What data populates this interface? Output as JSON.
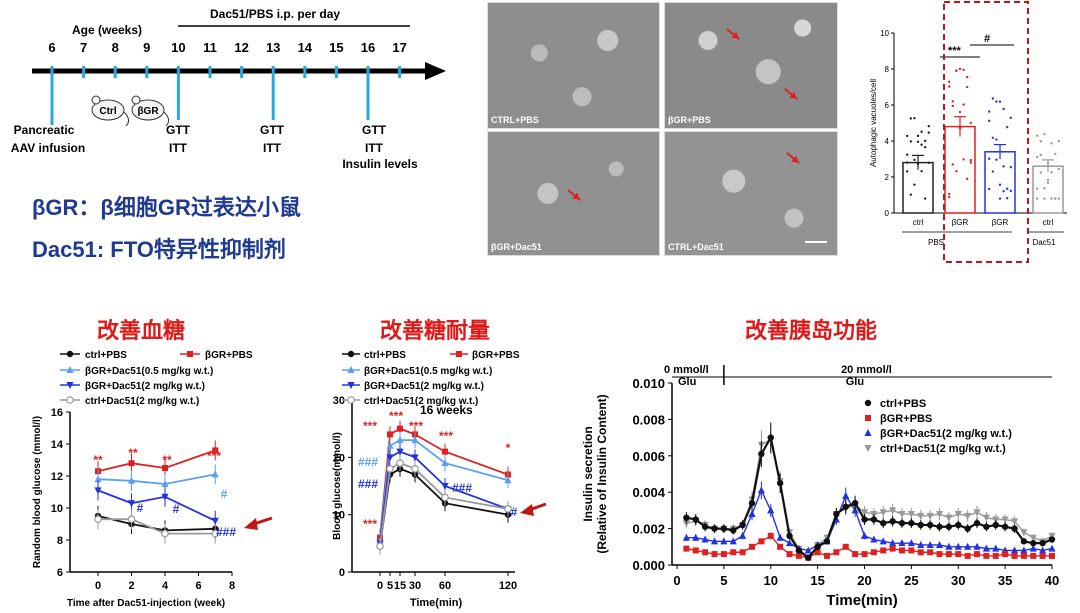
{
  "timeline": {
    "header_age": "Age (weeks)",
    "header_treat": "Dac51/PBS  i.p. per day",
    "weeks": [
      "6",
      "7",
      "8",
      "9",
      "10",
      "11",
      "12",
      "13",
      "14",
      "15",
      "16",
      "17"
    ],
    "mouse_ctrl": "Ctrl",
    "mouse_bgr": "βGR",
    "event_pancreatic": "Pancreatic",
    "event_aav": "AAV infusion",
    "gtt": "GTT",
    "itt": "ITT",
    "insulin_levels": "Insulin levels"
  },
  "notes": {
    "line1": "βGR：β细胞GR过表达小鼠",
    "line2": "Dac51: FTO特异性抑制剂"
  },
  "em_images": {
    "p1": "CTRL+PBS",
    "p2": "βGR+PBS",
    "p3": "βGR+Dac51",
    "p4": "CTRL+Dac51"
  },
  "section_titles": {
    "glucose": "改善血糖",
    "tolerance": "改善糖耐量",
    "islet": "改善胰岛功能"
  },
  "chart_data": [
    {
      "type": "bar",
      "ylabel": "Autophagic vacuoles/cell",
      "ylim": [
        0,
        10
      ],
      "yticks": [
        "0",
        "2",
        "4",
        "6",
        "8",
        "10"
      ],
      "categories": [
        "ctrl",
        "βGR",
        "βGR",
        "ctrl"
      ],
      "groups": [
        "PBS",
        "Dac51"
      ],
      "values": [
        2.8,
        4.8,
        3.4,
        2.6
      ],
      "errors": [
        0.4,
        0.55,
        0.4,
        0.35
      ],
      "colors": [
        "#222222",
        "#e02020",
        "#2233dd",
        "#999999"
      ],
      "annotations": [
        "***",
        "#"
      ]
    },
    {
      "type": "line",
      "xlabel": "Time after Dac51-injection (week)",
      "ylabel": "Random blood glucose (mmol/l)",
      "xticks": [
        "0",
        "2",
        "4",
        "6",
        "8"
      ],
      "yticks": [
        "6",
        "8",
        "10",
        "12",
        "14",
        "16"
      ],
      "x": [
        0,
        2,
        4,
        7
      ],
      "series": [
        {
          "name": "ctrl+PBS",
          "values": [
            9.5,
            9.0,
            8.6,
            8.7
          ],
          "color": "#111111"
        },
        {
          "name": "βGR+PBS",
          "values": [
            12.3,
            12.8,
            12.5,
            13.6
          ],
          "color": "#e02020"
        },
        {
          "name": "βGR+Dac51(0.5 mg/kg w.t.)",
          "values": [
            11.8,
            11.7,
            11.5,
            12.1
          ],
          "color": "#5aa0f0"
        },
        {
          "name": "βGR+Dac51(2 mg/kg w.t.)",
          "values": [
            11.1,
            10.3,
            10.7,
            9.2
          ],
          "color": "#2233dd"
        },
        {
          "name": "ctrl+Dac51(2 mg/kg w.t.)",
          "values": [
            9.3,
            9.3,
            8.4,
            8.4
          ],
          "color": "#999999"
        }
      ],
      "annotations": [
        "**",
        "**",
        "**",
        "***",
        "#",
        "#",
        "#",
        "###"
      ]
    },
    {
      "type": "line",
      "title": "16 weeks",
      "xlabel": "Time(min)",
      "ylabel": "Blood glucose(mmol/l)",
      "xticks": [
        "0",
        "5",
        "15",
        "30",
        "60",
        "120"
      ],
      "yticks": [
        "0",
        "10",
        "20",
        "30"
      ],
      "series": [
        {
          "name": "ctrl+PBS",
          "values": [
            4.5,
            17,
            18,
            17,
            12,
            10
          ],
          "color": "#111111"
        },
        {
          "name": "βGR+PBS",
          "values": [
            6,
            24,
            25,
            24,
            21,
            17
          ],
          "color": "#e02020"
        },
        {
          "name": "βGR+Dac51(0.5 mg/kg w.t.)",
          "values": [
            5.5,
            22,
            23,
            23,
            19,
            16
          ],
          "color": "#5aa0f0"
        },
        {
          "name": "βGR+Dac51(2 mg/kg w.t.)",
          "values": [
            5,
            20,
            21,
            20,
            15,
            11
          ],
          "color": "#2233dd"
        },
        {
          "name": "ctrl+Dac51(2 mg/kg w.t.)",
          "values": [
            4.5,
            18,
            19,
            18,
            13,
            11
          ],
          "color": "#999999"
        }
      ],
      "annotations": [
        "***",
        "***",
        "***",
        "***",
        "***",
        "*",
        "###",
        "###",
        "###",
        "#"
      ]
    },
    {
      "type": "line",
      "xlabel": "Time(min)",
      "ylabel": "Insulin secretion (Relative of Insulin Content)",
      "xticks": [
        "0",
        "5",
        "10",
        "15",
        "20",
        "25",
        "30",
        "35",
        "40"
      ],
      "yticks": [
        "0.000",
        "0.002",
        "0.004",
        "0.006",
        "0.008",
        "0.010"
      ],
      "markers": [
        "0 mmol/l Glu",
        "20 mmol/l Glu"
      ],
      "series": [
        {
          "name": "ctrl+PBS",
          "color": "#111111",
          "values": [
            0.0026,
            0.0025,
            0.0021,
            0.002,
            0.002,
            0.0019,
            0.0022,
            0.0034,
            0.0061,
            0.007,
            0.0045,
            0.0016,
            0.0008,
            0.0004,
            0.001,
            0.0013,
            0.0028,
            0.0032,
            0.0034,
            0.0025,
            0.0025,
            0.0023,
            0.0024,
            0.0023,
            0.0023,
            0.0022,
            0.0022,
            0.0021,
            0.0021,
            0.0022,
            0.002,
            0.0023,
            0.0021,
            0.0022,
            0.0021,
            0.002,
            0.0013,
            0.0012,
            0.0012,
            0.0014
          ]
        },
        {
          "name": "βGR+PBS",
          "color": "#e02020",
          "values": [
            0.0009,
            0.0008,
            0.0007,
            0.0006,
            0.0006,
            0.0007,
            0.0007,
            0.001,
            0.0013,
            0.0016,
            0.001,
            0.0006,
            0.0005,
            0.0004,
            0.0007,
            0.0005,
            0.0007,
            0.001,
            0.0006,
            0.0006,
            0.0007,
            0.0008,
            0.0009,
            0.0008,
            0.0008,
            0.0007,
            0.0007,
            0.0006,
            0.0006,
            0.0006,
            0.0005,
            0.0006,
            0.0005,
            0.0005,
            0.0006,
            0.0005,
            0.0005,
            0.0005,
            0.0005,
            0.0005
          ]
        },
        {
          "name": "βGR+Dac51(2 mg/kg w.t.)",
          "color": "#2233dd",
          "values": [
            0.0015,
            0.0015,
            0.0014,
            0.0013,
            0.0013,
            0.0013,
            0.0016,
            0.0028,
            0.0041,
            0.003,
            0.0015,
            0.0012,
            0.0009,
            0.0008,
            0.0011,
            0.0013,
            0.0025,
            0.0038,
            0.003,
            0.0016,
            0.0014,
            0.0013,
            0.0012,
            0.0012,
            0.0012,
            0.0011,
            0.0011,
            0.0011,
            0.001,
            0.001,
            0.001,
            0.001,
            0.0009,
            0.0009,
            0.0008,
            0.0008,
            0.0008,
            0.0009,
            0.0008,
            0.0009
          ]
        },
        {
          "name": "ctrl+Dac51(2 mg/kg w.t.)",
          "color": "#999999",
          "values": [
            0.0023,
            0.0024,
            0.0022,
            0.002,
            0.002,
            0.002,
            0.0022,
            0.0036,
            0.0066,
            0.0069,
            0.0046,
            0.0018,
            0.0009,
            0.0004,
            0.0011,
            0.0015,
            0.0028,
            0.0031,
            0.0033,
            0.0029,
            0.0028,
            0.0029,
            0.003,
            0.0028,
            0.0028,
            0.0027,
            0.0027,
            0.0028,
            0.0026,
            0.0028,
            0.0027,
            0.0029,
            0.0026,
            0.0025,
            0.0025,
            0.0024,
            0.0018,
            0.0015,
            0.0013,
            0.0016
          ]
        }
      ]
    }
  ]
}
